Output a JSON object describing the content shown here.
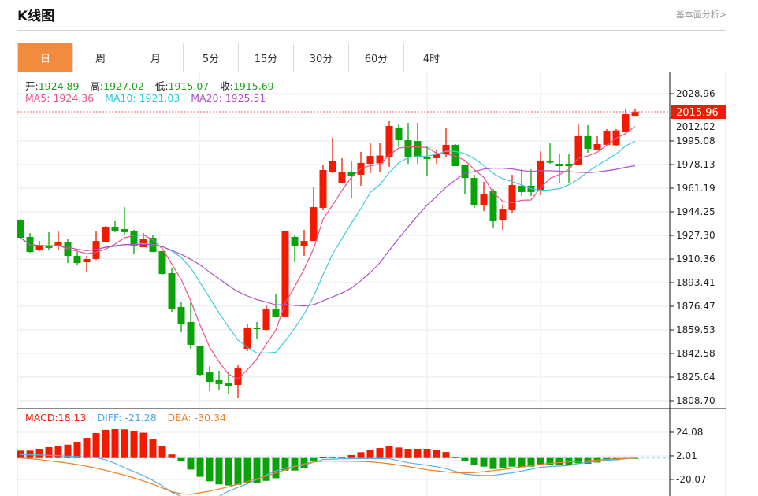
{
  "header": {
    "title": "K线图",
    "link": "基本面分析>"
  },
  "tabs": [
    {
      "label": "日",
      "active": true
    },
    {
      "label": "周"
    },
    {
      "label": "月"
    },
    {
      "label": "5分"
    },
    {
      "label": "15分"
    },
    {
      "label": "30分"
    },
    {
      "label": "60分"
    },
    {
      "label": "4时"
    }
  ],
  "ohlc_info": {
    "open_label": "开:",
    "open": "1924.89",
    "high_label": "高:",
    "high": "1927.02",
    "low_label": "低:",
    "low": "1915.07",
    "close_label": "收:",
    "close": "1915.69"
  },
  "ma_info": {
    "ma5": "MA5: 1924.36",
    "ma10": "MA10: 1921.03",
    "ma20": "MA20: 1925.51"
  },
  "macd_info": {
    "macd": "MACD:18.13",
    "diff": "DIFF: -21.28",
    "dea": "DEA: -30.34"
  },
  "last_price": "2015.96",
  "colors": {
    "up": "#f21a00",
    "down": "#08a308",
    "ma5": "#f0508a",
    "ma10": "#3ccbe0",
    "ma20": "#b050c8",
    "diff": "#5aaef0",
    "dea": "#f57c20",
    "active_tab": "#f28b3d"
  },
  "chart_data": [
    {
      "type": "candlestick",
      "ylim": [
        1808.7,
        2028.96
      ],
      "yticks": [
        "2028.96",
        "2012.02",
        "1995.08",
        "1978.13",
        "1961.19",
        "1944.25",
        "1927.30",
        "1910.36",
        "1893.41",
        "1876.47",
        "1859.53",
        "1842.58",
        "1825.64",
        "1808.70"
      ],
      "ma_periods": [
        5,
        10,
        20
      ],
      "last_price": 2015.96,
      "ohlc": [
        [
          1938.6,
          1939.2,
          1925.6,
          1925.6
        ],
        [
          1926.2,
          1929.0,
          1914.9,
          1915.4
        ],
        [
          1916.6,
          1923.3,
          1916.0,
          1919.4
        ],
        [
          1919.4,
          1929.6,
          1917.1,
          1918.3
        ],
        [
          1919.4,
          1930.7,
          1916.6,
          1922.2
        ],
        [
          1922.2,
          1924.5,
          1907.5,
          1912.6
        ],
        [
          1912.6,
          1915.4,
          1905.8,
          1907.5
        ],
        [
          1908.1,
          1912.6,
          1900.8,
          1910.4
        ],
        [
          1910.4,
          1930.7,
          1909.8,
          1923.3
        ],
        [
          1922.8,
          1934.1,
          1922.8,
          1933.5
        ],
        [
          1933.5,
          1937.5,
          1929.6,
          1930.7
        ],
        [
          1931.8,
          1947.6,
          1927.9,
          1929.6
        ],
        [
          1930.1,
          1931.3,
          1913.7,
          1919.4
        ],
        [
          1918.8,
          1929.0,
          1918.8,
          1925.0
        ],
        [
          1925.6,
          1927.3,
          1915.4,
          1915.4
        ],
        [
          1916.0,
          1916.0,
          1899.1,
          1899.6
        ],
        [
          1900.2,
          1903.6,
          1872.5,
          1874.2
        ],
        [
          1875.9,
          1879.3,
          1857.8,
          1864.0
        ],
        [
          1865.2,
          1879.9,
          1846.0,
          1848.8
        ],
        [
          1848.2,
          1848.2,
          1826.8,
          1827.3
        ],
        [
          1829.0,
          1833.5,
          1815.5,
          1822.2
        ],
        [
          1823.4,
          1830.2,
          1816.6,
          1820.6
        ],
        [
          1821.1,
          1829.0,
          1813.2,
          1819.4
        ],
        [
          1820.0,
          1834.7,
          1810.4,
          1831.8
        ],
        [
          1846.0,
          1863.5,
          1844.3,
          1861.2
        ],
        [
          1861.2,
          1865.2,
          1853.3,
          1860.1
        ],
        [
          1859.5,
          1877.0,
          1859.0,
          1874.2
        ],
        [
          1874.2,
          1884.9,
          1868.6,
          1868.6
        ],
        [
          1868.6,
          1930.7,
          1868.6,
          1930.1
        ],
        [
          1926.2,
          1927.9,
          1908.1,
          1919.4
        ],
        [
          1919.4,
          1931.3,
          1912.6,
          1923.3
        ],
        [
          1923.3,
          1962.3,
          1923.3,
          1947.6
        ],
        [
          1947.1,
          1977.6,
          1945.4,
          1974.2
        ],
        [
          1973.0,
          1997.3,
          1971.9,
          1980.4
        ],
        [
          1964.6,
          1982.7,
          1964.6,
          1972.5
        ],
        [
          1973.0,
          1981.0,
          1953.8,
          1970.2
        ],
        [
          1970.8,
          1987.2,
          1962.9,
          1979.3
        ],
        [
          1978.7,
          1993.4,
          1971.9,
          1984.3
        ],
        [
          1979.0,
          1993.4,
          1972.5,
          1984.6
        ],
        [
          1983.8,
          2009.2,
          1976.4,
          2005.8
        ],
        [
          2004.7,
          2006.9,
          1990.6,
          1995.6
        ],
        [
          1995.6,
          2008.1,
          1978.7,
          1983.8
        ],
        [
          1995.0,
          2008.1,
          1978.7,
          1984.0
        ],
        [
          1983.8,
          1991.7,
          1970.2,
          1982.1
        ],
        [
          1982.7,
          1988.3,
          1978.7,
          1985.5
        ],
        [
          1985.5,
          2004.1,
          1983.2,
          1992.3
        ],
        [
          1992.3,
          1992.8,
          1977.0,
          1977.0
        ],
        [
          1978.1,
          1978.1,
          1956.7,
          1968.5
        ],
        [
          1968.5,
          1970.8,
          1947.1,
          1949.3
        ],
        [
          1949.3,
          1965.7,
          1944.8,
          1957.2
        ],
        [
          1958.9,
          1960.6,
          1932.9,
          1937.5
        ],
        [
          1938.0,
          1949.3,
          1931.3,
          1945.9
        ],
        [
          1945.4,
          1970.8,
          1943.7,
          1963.4
        ],
        [
          1962.9,
          1974.7,
          1955.5,
          1958.4
        ],
        [
          1962.9,
          1974.7,
          1955.5,
          1958.4
        ],
        [
          1959.5,
          1987.7,
          1956.1,
          1981.0
        ],
        [
          1980.4,
          1993.4,
          1978.7,
          1979.8
        ],
        [
          1978.7,
          1985.5,
          1965.1,
          1977.0
        ],
        [
          1978.7,
          1985.5,
          1965.1,
          1977.0
        ],
        [
          1977.6,
          2007.5,
          1977.6,
          1998.5
        ],
        [
          1998.5,
          2006.4,
          1986.6,
          1989.4
        ],
        [
          1988.9,
          1998.5,
          1988.9,
          1992.8
        ],
        [
          1992.3,
          2003.5,
          1992.3,
          2002.4
        ],
        [
          1992.0,
          2003.5,
          1991.5,
          2002.6
        ],
        [
          2001.3,
          2018.2,
          2001.3,
          2014.3
        ],
        [
          2013.1,
          2018.2,
          2013.1,
          2015.96
        ]
      ]
    },
    {
      "type": "macd",
      "yticks": [
        "24.08",
        "2.01",
        "-20.07"
      ],
      "tick_values": [
        24.08,
        2.01,
        -20.07
      ],
      "macd": [
        6.9,
        6.9,
        8.6,
        10.1,
        11.5,
        12.5,
        15.0,
        18.9,
        23.3,
        26.3,
        27.0,
        26.8,
        25.3,
        23.6,
        17.9,
        11.5,
        3.3,
        -3.2,
        -10.8,
        -17.6,
        -21.8,
        -24.7,
        -25.7,
        -25.0,
        -23.5,
        -23.5,
        -21.4,
        -18.9,
        -11.8,
        -11.8,
        -9.1,
        -2.9,
        0.5,
        1.2,
        1.2,
        2.7,
        5.4,
        7.6,
        9.3,
        11.5,
        9.8,
        8.6,
        8.6,
        8.6,
        7.8,
        5.6,
        1.2,
        -2.5,
        -6.6,
        -8.1,
        -10.3,
        -9.5,
        -8.1,
        -8.6,
        -8.1,
        -6.9,
        -6.9,
        -6.9,
        -6.1,
        -4.9,
        -5.4,
        -4.2,
        -2.9,
        -2.0,
        -0.5,
        -0.2
      ],
      "diff": [
        3.2,
        3.0,
        2.8,
        2.5,
        2.2,
        1.8,
        1.3,
        0.9,
        0.5,
        -1.8,
        -5,
        -9,
        -12.8,
        -16.5,
        -21,
        -26,
        -32,
        -36,
        -39,
        -40,
        -39,
        -36,
        -31,
        -27.5,
        -24,
        -20,
        -16,
        -12,
        -9.5,
        -7.8,
        -6.8,
        -4,
        -1.5,
        -1,
        -0.8,
        -0.6,
        -0.5,
        -0.5,
        -0.5,
        -0.6,
        -2.5,
        -4.4,
        -5.6,
        -6.8,
        -8.2,
        -10,
        -12.5,
        -15,
        -16,
        -16.3,
        -16.2,
        -15,
        -13.8,
        -12.2,
        -10.5,
        -8.7,
        -8,
        -7.6,
        -7,
        -5.2,
        -4,
        -3,
        -2.2,
        -1.4,
        -0.7,
        0
      ],
      "dea": [
        0,
        -0.6,
        -1.5,
        -2.5,
        -3.6,
        -4.8,
        -6.1,
        -7.7,
        -9.5,
        -11.5,
        -13.8,
        -16,
        -18.6,
        -21.5,
        -24.5,
        -28,
        -31.5,
        -33.5,
        -34,
        -32.5,
        -31,
        -29,
        -27,
        -24.5,
        -22,
        -19.5,
        -17,
        -14,
        -11,
        -8,
        -5.5,
        -3.7,
        -2.9,
        -2.9,
        -3.0,
        -3.1,
        -3.2,
        -3.6,
        -4.4,
        -5.4,
        -6.6,
        -8,
        -9.5,
        -11,
        -12,
        -13,
        -13.7,
        -14,
        -13.5,
        -12.8,
        -11.8,
        -10.8,
        -9.5,
        -8.3,
        -7.2,
        -5.9,
        -5,
        -4.3,
        -3.7,
        -3.1,
        -2.5,
        -1.9,
        -1.3,
        -0.8,
        -0.4,
        0
      ]
    }
  ]
}
